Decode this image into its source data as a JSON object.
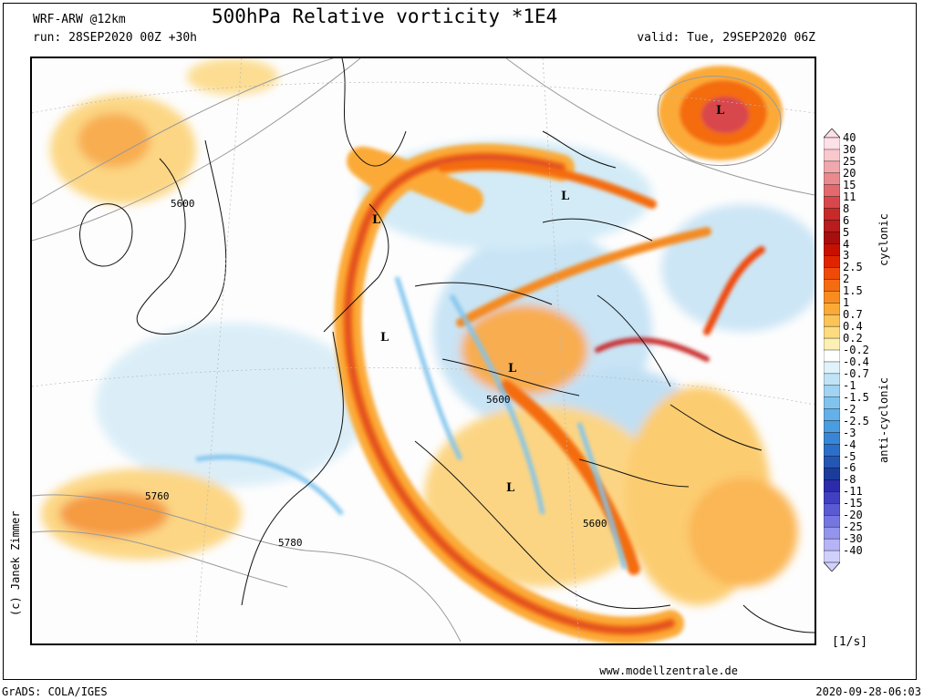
{
  "header": {
    "model": "WRF-ARW @12km",
    "title": "500hPa Relative vorticity *1E4",
    "run": "run: 28SEP2020 00Z +30h",
    "valid": "valid: Tue, 29SEP2020 06Z"
  },
  "footer": {
    "credit": "(c) Janek Zimmer",
    "website": "www.modellzentrale.de",
    "software": "GrADS: COLA/IGES",
    "timestamp": "2020-09-28-06:03"
  },
  "legend": {
    "unit": "[1/s]",
    "cyclonic_label": "cyclonic",
    "anticyclonic_label": "anti-cyclonic",
    "levels": [
      "40",
      "30",
      "25",
      "20",
      "15",
      "11",
      "8",
      "6",
      "5",
      "4",
      "3",
      "2.5",
      "2",
      "1.5",
      "1",
      "0.7",
      "0.4",
      "0.2",
      "-0.2",
      "-0.4",
      "-0.7",
      "-1",
      "-1.5",
      "-2",
      "-2.5",
      "-3",
      "-4",
      "-5",
      "-6",
      "-8",
      "-11",
      "-15",
      "-20",
      "-25",
      "-30",
      "-40"
    ],
    "colors": [
      "#fde0e8",
      "#f8c8cc",
      "#f0a8ad",
      "#ea8a8e",
      "#e26a6e",
      "#d8474b",
      "#c82a2a",
      "#b81c1c",
      "#a80e0e",
      "#c81000",
      "#e02400",
      "#f04a08",
      "#f46c10",
      "#f88c20",
      "#fbaa38",
      "#fcc458",
      "#fddc80",
      "#fdf0b4",
      "#ffffff",
      "#e0f2fa",
      "#c0e4f6",
      "#a0d4f2",
      "#80c4ee",
      "#64b0e8",
      "#4c9ce0",
      "#3a86d6",
      "#2c6ec8",
      "#2456b4",
      "#1c3c9c",
      "#2c2caa",
      "#4040c0",
      "#5a5ad2",
      "#7676e0",
      "#9494ec",
      "#b4b4f6",
      "#d0d0fc"
    ]
  },
  "map": {
    "pressure_low_label": "L",
    "lows": [
      "L",
      "L",
      "L",
      "L",
      "L",
      "L"
    ],
    "contour_labels": [
      "5600",
      "5600",
      "5600",
      "5760",
      "5780"
    ]
  }
}
